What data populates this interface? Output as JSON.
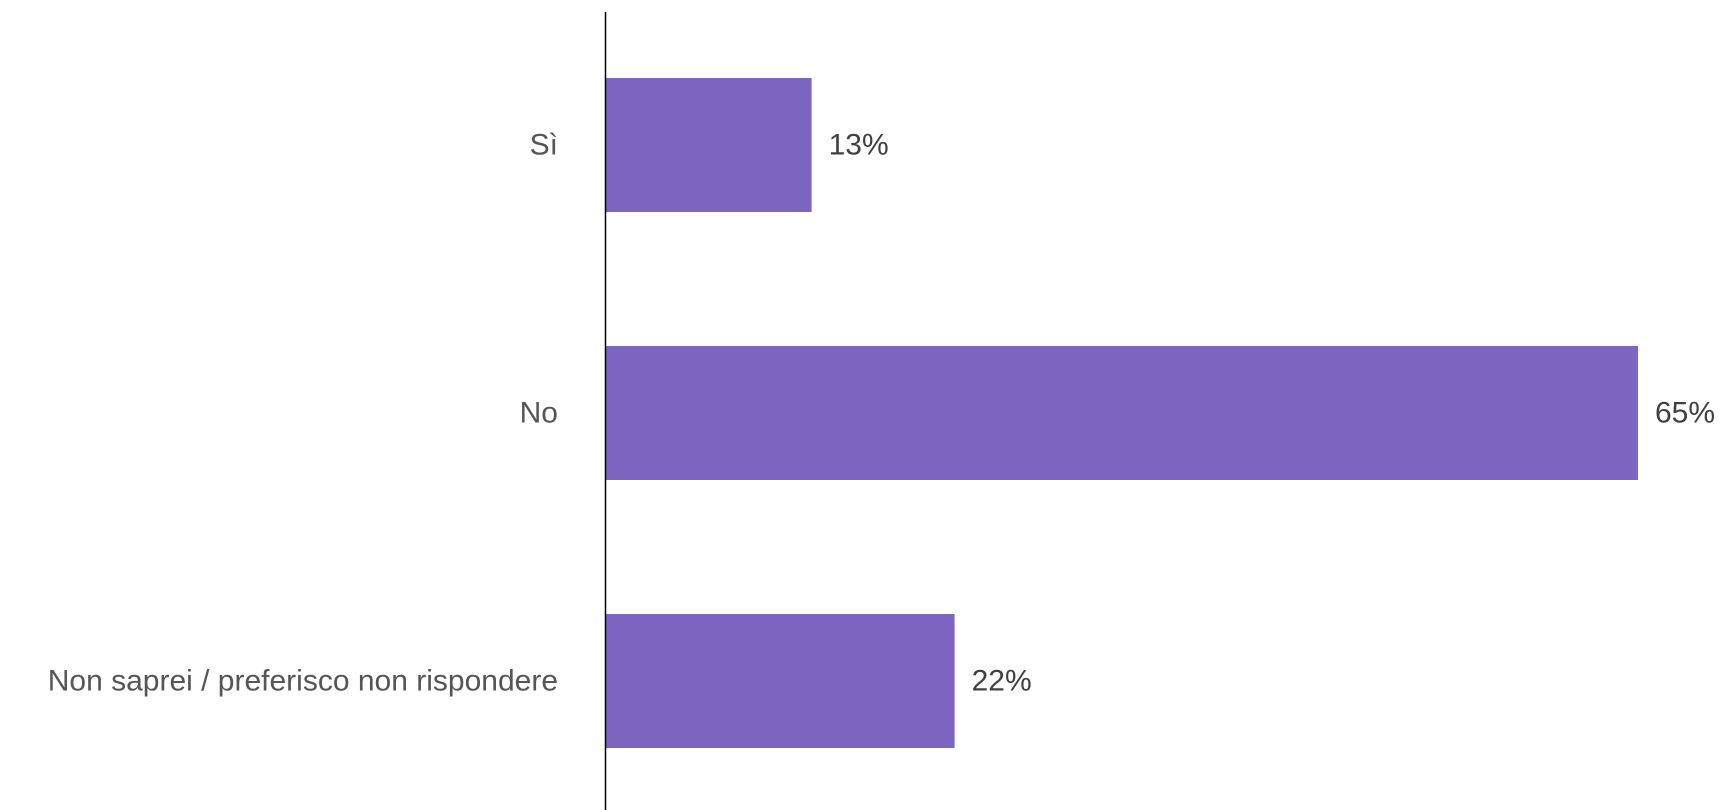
{
  "chart_data": {
    "type": "bar",
    "orientation": "horizontal",
    "categories": [
      "Sì",
      "No",
      "Non saprei / preferisco non rispondere"
    ],
    "values": [
      13,
      65,
      22
    ],
    "value_labels": [
      "13%",
      "65%",
      "22%"
    ],
    "unit": "%",
    "xlim": [
      0,
      65
    ],
    "bar_color": "#7d66c2",
    "axis_color": "#000000",
    "grid": false,
    "legend": "none"
  }
}
